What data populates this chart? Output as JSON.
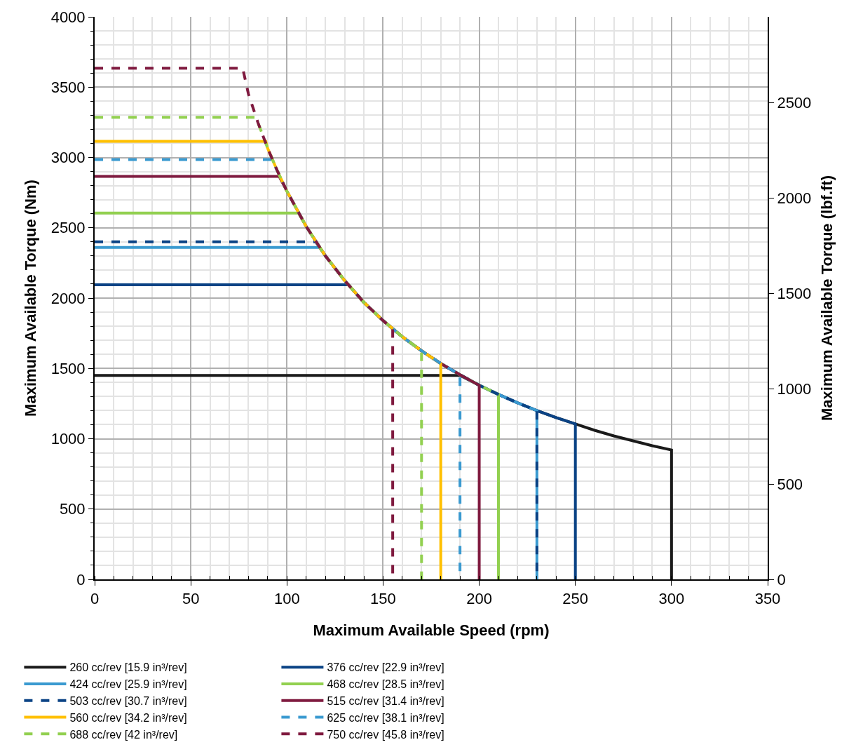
{
  "chart_data": {
    "type": "line",
    "xlabel": "Maximum Available Speed (rpm)",
    "ylabel": "Maximum Available Torque (Nm)",
    "y2label": "Maximum Available Torque (lbf.ft)",
    "xlim": [
      0,
      350
    ],
    "xticks": [
      0,
      50,
      100,
      150,
      200,
      250,
      300,
      350
    ],
    "ylim": [
      0,
      4000
    ],
    "yticks": [
      0,
      500,
      1000,
      1500,
      2000,
      2500,
      3000,
      3500,
      4000
    ],
    "y2lim": [
      0,
      2950
    ],
    "y2ticks": [
      0,
      500,
      1000,
      1500,
      2000,
      2500
    ],
    "grid": true,
    "legend": "bottom",
    "marker": "none",
    "series": [
      {
        "name": "260 cc/rev [15.9 in³/rev]",
        "color": "#1a1a1a",
        "line_style": "solid",
        "x": [
          0,
          190,
          200,
          210,
          220,
          230,
          240,
          250,
          260,
          270,
          280,
          290,
          300,
          300
        ],
        "values": [
          1450,
          1450,
          1380,
          1315,
          1255,
          1200,
          1150,
          1105,
          1060,
          1020,
          985,
          950,
          920,
          0
        ]
      },
      {
        "name": "376 cc/rev [22.9 in³/rev]",
        "color": "#0b4385",
        "line_style": "solid",
        "x": [
          0,
          132,
          140,
          150,
          160,
          170,
          180,
          190,
          200,
          210,
          220,
          230,
          240,
          250,
          250
        ],
        "values": [
          2095,
          2095,
          1970,
          1840,
          1725,
          1625,
          1535,
          1455,
          1380,
          1315,
          1255,
          1200,
          1150,
          1105,
          0
        ]
      },
      {
        "name": "424 cc/rev [25.9 in³/rev]",
        "color": "#3a9ad0",
        "line_style": "solid",
        "x": [
          0,
          117,
          120,
          130,
          140,
          150,
          160,
          170,
          180,
          190,
          200,
          210,
          220,
          230,
          230
        ],
        "values": [
          2360,
          2360,
          2300,
          2125,
          1970,
          1840,
          1725,
          1625,
          1535,
          1455,
          1380,
          1315,
          1255,
          1200,
          0
        ]
      },
      {
        "name": "468 cc/rev [28.5 in³/rev]",
        "color": "#92d050",
        "line_style": "solid",
        "x": [
          0,
          106,
          110,
          120,
          130,
          140,
          150,
          160,
          170,
          180,
          190,
          200,
          210,
          210
        ],
        "values": [
          2605,
          2605,
          2510,
          2300,
          2125,
          1970,
          1840,
          1725,
          1625,
          1535,
          1455,
          1380,
          1315,
          0
        ]
      },
      {
        "name": "503 cc/rev [30.7 in³/rev]",
        "color": "#0b4385",
        "line_style": "dashed",
        "x": [
          0,
          115,
          120,
          130,
          140,
          150,
          160,
          170,
          180,
          190,
          200,
          210,
          220,
          230,
          230
        ],
        "values": [
          2400,
          2400,
          2300,
          2125,
          1970,
          1840,
          1725,
          1625,
          1535,
          1455,
          1380,
          1315,
          1255,
          1200,
          0
        ]
      },
      {
        "name": "515 cc/rev [31.4 in³/rev]",
        "color": "#7f1a3f",
        "line_style": "solid",
        "x": [
          0,
          96,
          100,
          110,
          120,
          130,
          140,
          150,
          160,
          170,
          180,
          190,
          200,
          200
        ],
        "values": [
          2865,
          2865,
          2760,
          2510,
          2300,
          2125,
          1970,
          1840,
          1725,
          1625,
          1535,
          1455,
          1380,
          0
        ]
      },
      {
        "name": "560 cc/rev [34.2 in³/rev]",
        "color": "#ffc000",
        "line_style": "solid",
        "x": [
          0,
          89,
          90,
          95,
          100,
          110,
          120,
          130,
          140,
          150,
          160,
          170,
          180,
          180
        ],
        "values": [
          3115,
          3115,
          3065,
          2905,
          2760,
          2510,
          2300,
          2125,
          1970,
          1840,
          1725,
          1625,
          1535,
          0
        ]
      },
      {
        "name": "625 cc/rev [38.1 in³/rev]",
        "color": "#3a9ad0",
        "line_style": "dashed",
        "x": [
          0,
          92,
          95,
          100,
          110,
          120,
          130,
          140,
          150,
          160,
          170,
          180,
          190,
          190
        ],
        "values": [
          2985,
          2985,
          2905,
          2760,
          2510,
          2300,
          2125,
          1970,
          1840,
          1725,
          1625,
          1535,
          1455,
          0
        ]
      },
      {
        "name": "688 cc/rev [42 in³/rev]",
        "color": "#92d050",
        "line_style": "dashed",
        "x": [
          0,
          84,
          85,
          90,
          95,
          100,
          110,
          120,
          130,
          140,
          150,
          160,
          170,
          170
        ],
        "values": [
          3285,
          3285,
          3245,
          3065,
          2905,
          2760,
          2510,
          2300,
          2125,
          1970,
          1840,
          1725,
          1625,
          0
        ]
      },
      {
        "name": "750 cc/rev [45.8 in³/rev]",
        "color": "#7f1a3f",
        "line_style": "dashed",
        "x": [
          0,
          77,
          80,
          85,
          90,
          95,
          100,
          110,
          120,
          130,
          140,
          150,
          155,
          155
        ],
        "values": [
          3635,
          3635,
          3450,
          3245,
          3065,
          2905,
          2760,
          2510,
          2300,
          2125,
          1970,
          1840,
          1780,
          0
        ]
      }
    ]
  }
}
